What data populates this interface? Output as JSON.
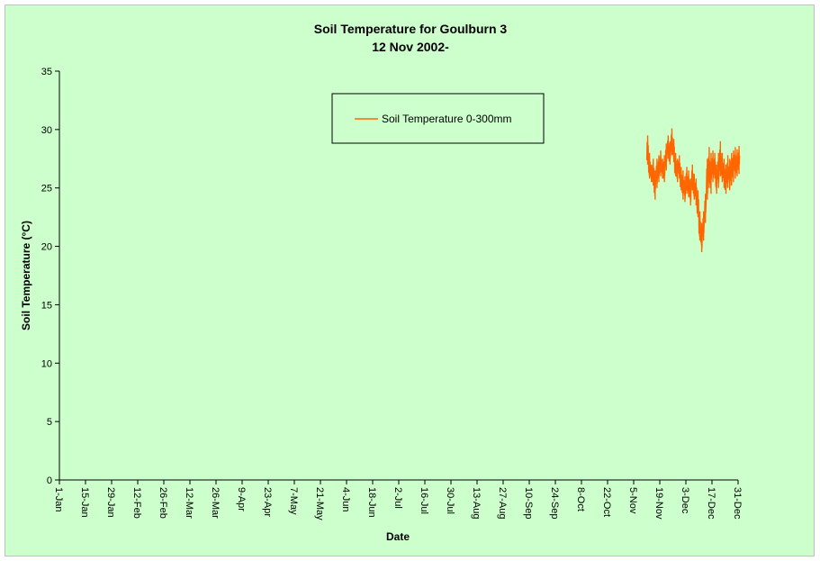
{
  "chart_data": {
    "type": "line",
    "title": "Soil Temperature for Goulburn 3",
    "subtitle": "12 Nov 2002-",
    "xlabel": "Date",
    "ylabel": "Soil Temperature (°C)",
    "ylim": [
      0,
      35
    ],
    "yticks": [
      0,
      5,
      10,
      15,
      20,
      25,
      30,
      35
    ],
    "xlim": [
      "1-Jan",
      "31-Dec"
    ],
    "xticks": [
      "1-Jan",
      "15-Jan",
      "29-Jan",
      "12-Feb",
      "26-Feb",
      "12-Mar",
      "26-Mar",
      "9-Apr",
      "23-Apr",
      "7-May",
      "21-May",
      "4-Jun",
      "18-Jun",
      "2-Jul",
      "16-Jul",
      "30-Jul",
      "13-Aug",
      "27-Aug",
      "10-Sep",
      "24-Sep",
      "8-Oct",
      "22-Oct",
      "5-Nov",
      "19-Nov",
      "3-Dec",
      "17-Dec",
      "31-Dec"
    ],
    "grid": false,
    "legend_position": "top-center",
    "series": [
      {
        "name": "Soil Temperature  0-300mm",
        "color": "#ff6600",
        "x": [
          "12-Nov",
          "13-Nov",
          "14-Nov",
          "15-Nov",
          "16-Nov",
          "17-Nov",
          "18-Nov",
          "19-Nov",
          "20-Nov",
          "21-Nov",
          "22-Nov",
          "23-Nov",
          "24-Nov",
          "25-Nov",
          "26-Nov",
          "27-Nov",
          "28-Nov",
          "29-Nov",
          "30-Nov",
          "1-Dec",
          "2-Dec",
          "3-Dec",
          "4-Dec",
          "5-Dec",
          "6-Dec",
          "7-Dec",
          "8-Dec",
          "9-Dec",
          "10-Dec",
          "11-Dec",
          "12-Dec",
          "13-Dec",
          "14-Dec",
          "15-Dec",
          "16-Dec",
          "17-Dec",
          "18-Dec",
          "19-Dec",
          "20-Dec",
          "21-Dec",
          "22-Dec",
          "23-Dec",
          "24-Dec",
          "25-Dec",
          "26-Dec",
          "27-Dec",
          "28-Dec",
          "29-Dec",
          "30-Dec",
          "31-Dec"
        ],
        "low": [
          27.0,
          25.8,
          25.5,
          25.2,
          24.0,
          25.0,
          25.5,
          26.0,
          25.8,
          25.5,
          26.5,
          27.5,
          27.0,
          27.8,
          27.2,
          26.0,
          25.5,
          25.8,
          24.8,
          24.0,
          23.8,
          24.5,
          24.2,
          23.5,
          24.8,
          24.0,
          23.5,
          22.5,
          20.5,
          19.5,
          20.5,
          22.0,
          24.0,
          25.0,
          24.5,
          25.5,
          25.8,
          24.5,
          25.0,
          26.0,
          25.5,
          25.0,
          24.5,
          25.0,
          24.8,
          25.2,
          25.5,
          25.8,
          26.0,
          26.2
        ],
        "high": [
          29.5,
          28.0,
          27.0,
          27.5,
          26.5,
          27.5,
          27.8,
          28.2,
          27.5,
          27.8,
          28.8,
          29.5,
          29.0,
          30.1,
          29.2,
          28.0,
          27.5,
          27.8,
          26.8,
          26.5,
          26.0,
          26.8,
          26.5,
          25.8,
          27.0,
          26.2,
          25.8,
          24.8,
          23.0,
          22.0,
          23.0,
          24.5,
          27.5,
          28.5,
          28.0,
          28.2,
          28.0,
          27.0,
          28.0,
          29.0,
          28.0,
          27.5,
          27.0,
          27.8,
          27.5,
          28.0,
          28.2,
          28.5,
          28.3,
          28.6
        ]
      }
    ]
  }
}
